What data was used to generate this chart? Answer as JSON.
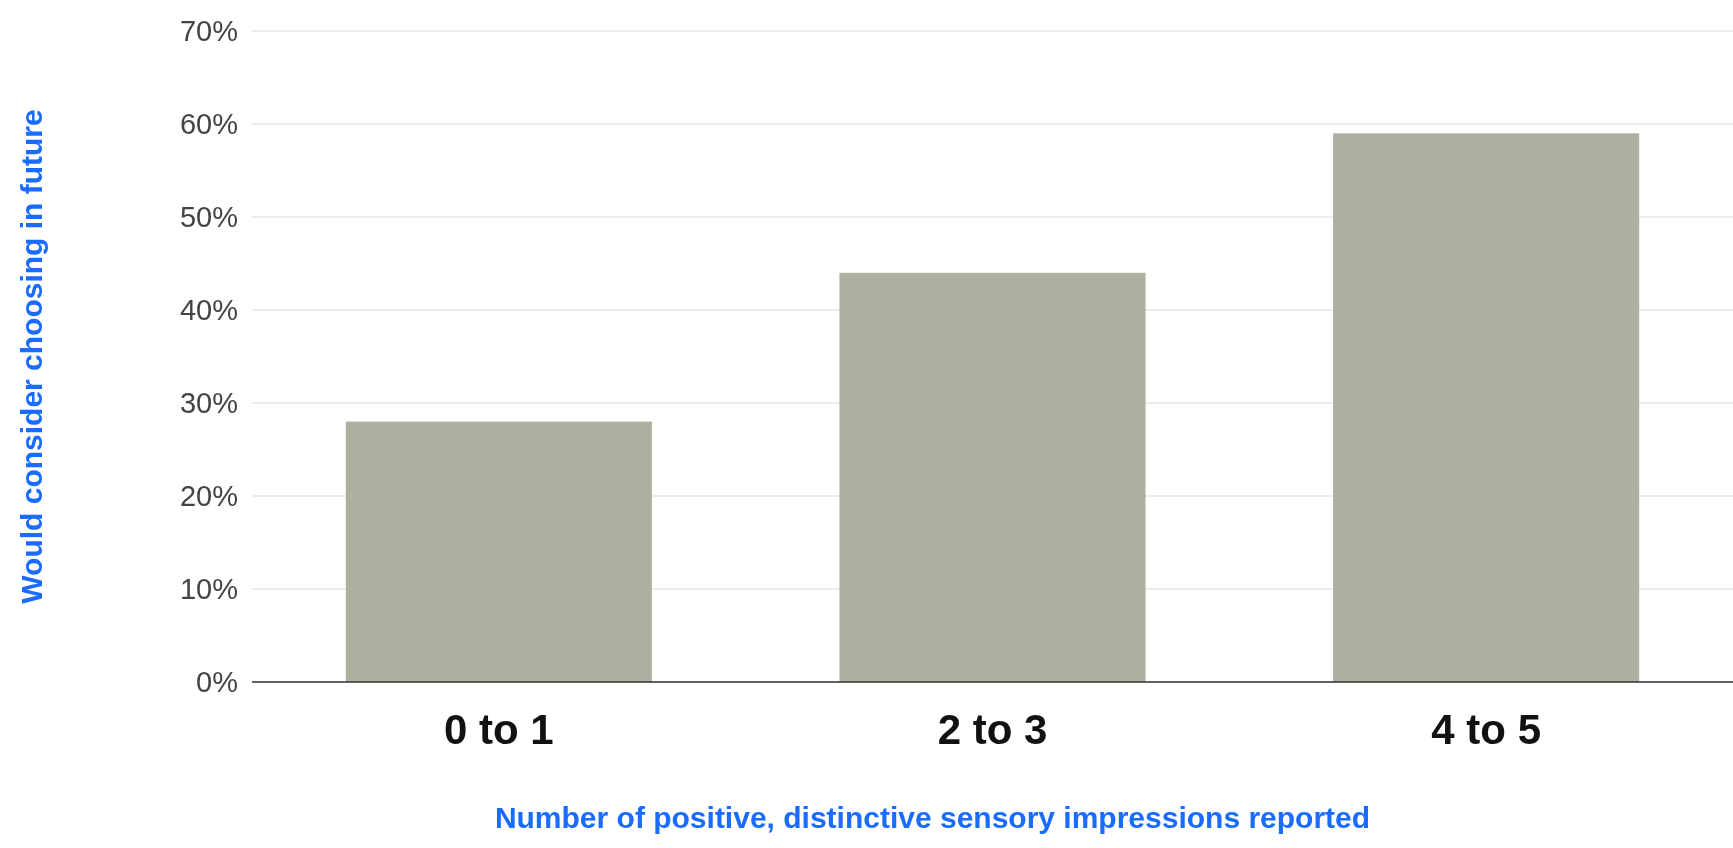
{
  "chart_data": {
    "type": "bar",
    "xlabel": "Number of positive, distinctive sensory impressions reported",
    "ylabel": "Would consider choosing in future",
    "categories": [
      "0 to 1",
      "2 to 3",
      "4 to 5"
    ],
    "values": [
      28,
      44,
      59
    ],
    "color": "#aeaf9f",
    "ylim": [
      0,
      70
    ],
    "yticks": [
      {
        "value": 0,
        "label": "0%"
      },
      {
        "value": 10,
        "label": "10%"
      },
      {
        "value": 20,
        "label": "20%"
      },
      {
        "value": 30,
        "label": "30%"
      },
      {
        "value": 40,
        "label": "40%"
      },
      {
        "value": 50,
        "label": "50%"
      },
      {
        "value": 60,
        "label": "60%"
      },
      {
        "value": 70,
        "label": "70%"
      }
    ],
    "grid": "y"
  }
}
